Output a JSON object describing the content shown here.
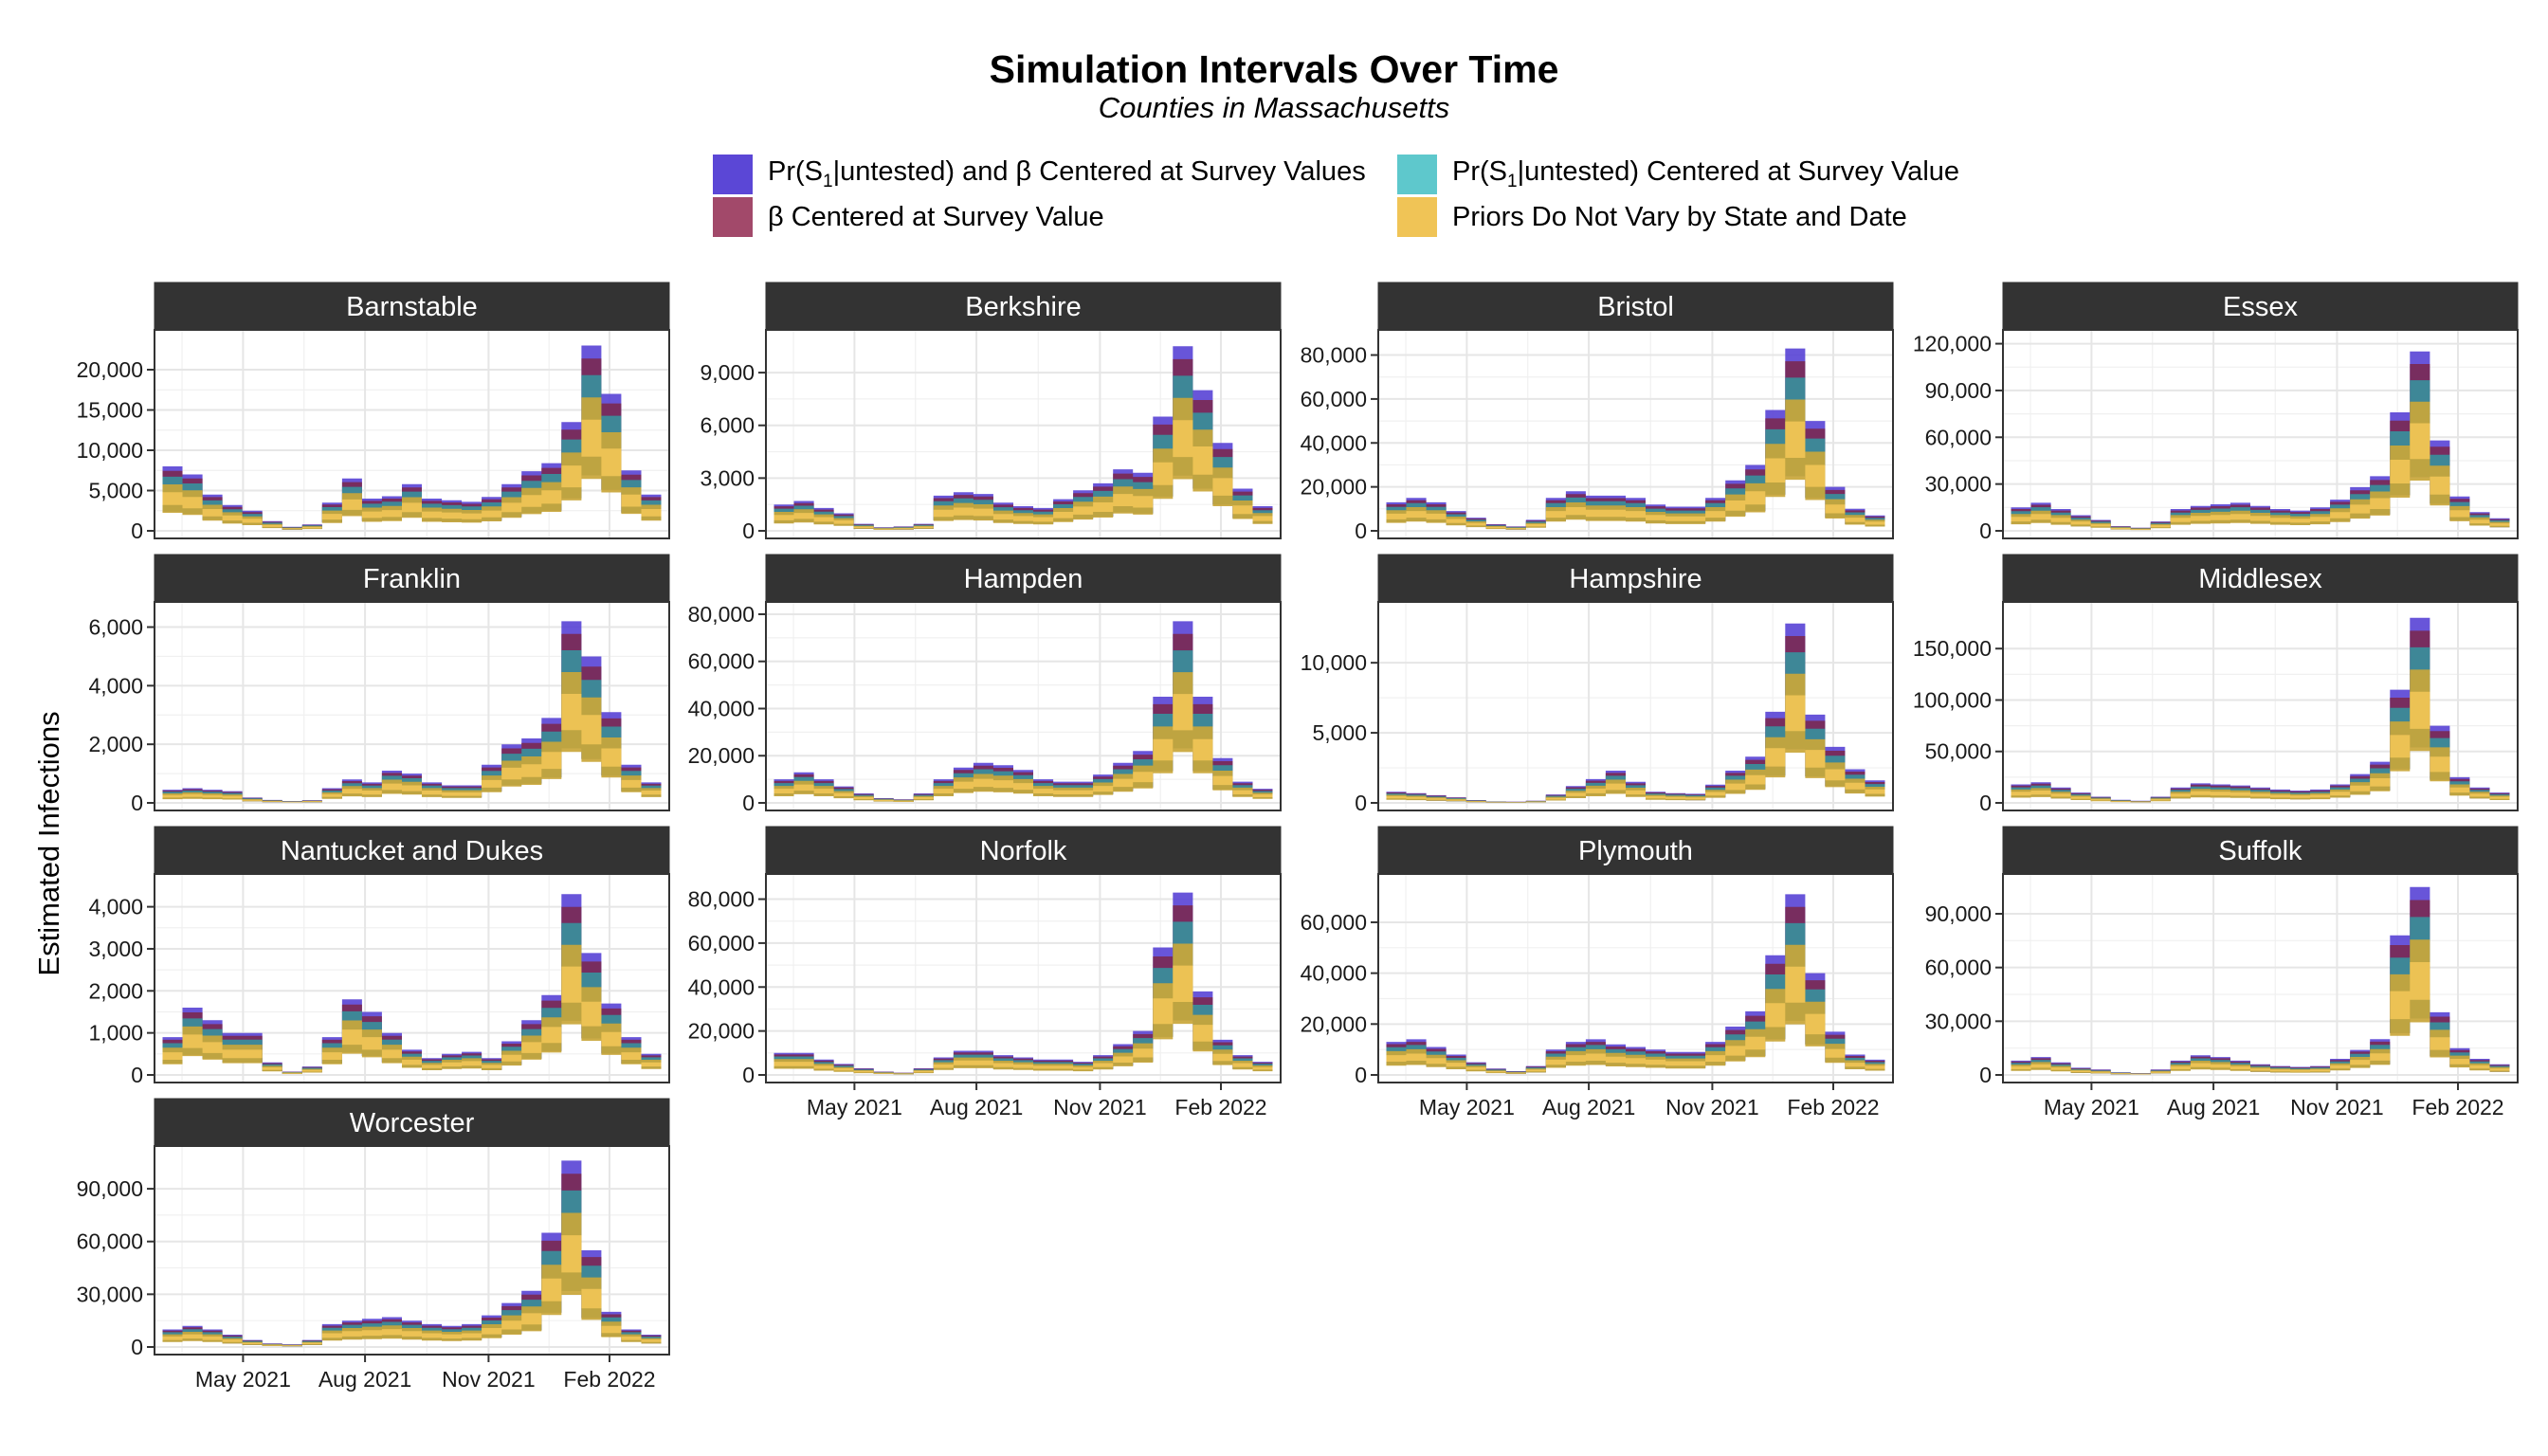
{
  "title": "Simulation Intervals Over Time",
  "subtitle": "Counties in Massachusetts",
  "ylabel": "Estimated Infections",
  "legend": [
    {
      "label_prefix": "Pr(S",
      "label_sub": "1",
      "label_suffix": "|untested) and β Centered at Survey Values",
      "color": "#5b47d6"
    },
    {
      "label_prefix": "Pr(S",
      "label_sub": "1",
      "label_suffix": "|untested) Centered at Survey Value",
      "color": "#5ec8cc"
    },
    {
      "label_prefix": "β Centered at Survey Value",
      "label_sub": "",
      "label_suffix": "",
      "color": "#a2496a"
    },
    {
      "label_prefix": "Priors Do Not Vary by State and Date",
      "label_sub": "",
      "label_suffix": "",
      "color": "#f0c456"
    }
  ],
  "chart_data": {
    "type": "area",
    "x_ticks": [
      "May 2021",
      "Aug 2021",
      "Nov 2021",
      "Feb 2022"
    ],
    "series_names": [
      "Pr(S1|untested) and β Centered at Survey Values",
      "Pr(S1|untested) Centered at Survey Value",
      "β Centered at Survey Value",
      "Priors Do Not Vary by State and Date"
    ],
    "x": [
      "2021-02",
      "2021-03a",
      "2021-03b",
      "2021-04a",
      "2021-04b",
      "2021-05a",
      "2021-05b",
      "2021-06a",
      "2021-06b",
      "2021-07a",
      "2021-07b",
      "2021-08a",
      "2021-08b",
      "2021-09a",
      "2021-09b",
      "2021-10a",
      "2021-10b",
      "2021-11a",
      "2021-11b",
      "2021-12a",
      "2021-12b",
      "2022-01a",
      "2022-01b",
      "2022-02a",
      "2022-02b"
    ],
    "panels": [
      {
        "name": "Barnstable",
        "y_ticks": [
          0,
          5000,
          10000,
          15000,
          20000
        ],
        "ylim": [
          0,
          24000
        ],
        "values": [
          8000,
          7000,
          4500,
          3200,
          2500,
          1200,
          500,
          800,
          3500,
          6500,
          4000,
          4300,
          5800,
          4000,
          3800,
          3600,
          4200,
          5800,
          7400,
          8400,
          13500,
          23000,
          17000,
          7500,
          4500
        ]
      },
      {
        "name": "Berkshire",
        "y_ticks": [
          0,
          3000,
          6000,
          9000
        ],
        "ylim": [
          0,
          11000
        ],
        "values": [
          1500,
          1700,
          1300,
          1000,
          400,
          200,
          250,
          400,
          2000,
          2200,
          2100,
          1600,
          1400,
          1300,
          1800,
          2300,
          2700,
          3500,
          3300,
          6500,
          10500,
          8000,
          5000,
          2400,
          1400
        ]
      },
      {
        "name": "Bristol",
        "y_ticks": [
          0,
          20000,
          40000,
          60000,
          80000
        ],
        "ylim": [
          0,
          88000
        ],
        "values": [
          13000,
          15000,
          13000,
          9000,
          6000,
          3000,
          2000,
          5000,
          15000,
          18000,
          16000,
          16000,
          15000,
          12000,
          11000,
          11000,
          15000,
          23000,
          30000,
          55000,
          83000,
          50000,
          20000,
          10000,
          7000
        ]
      },
      {
        "name": "Essex",
        "y_ticks": [
          0,
          30000,
          60000,
          90000,
          120000
        ],
        "ylim": [
          0,
          124000
        ],
        "values": [
          15000,
          18000,
          14000,
          10000,
          7000,
          3000,
          2000,
          6000,
          14000,
          16000,
          17000,
          18000,
          16000,
          14000,
          13000,
          15000,
          20000,
          28000,
          35000,
          76000,
          115000,
          58000,
          22000,
          12000,
          8000
        ]
      },
      {
        "name": "Franklin",
        "y_ticks": [
          0,
          2000,
          4000,
          6000
        ],
        "ylim": [
          0,
          6600
        ],
        "values": [
          450,
          500,
          450,
          400,
          180,
          100,
          60,
          90,
          500,
          800,
          700,
          1100,
          1000,
          700,
          600,
          600,
          1300,
          2000,
          2200,
          2900,
          6200,
          5000,
          3100,
          1300,
          700
        ]
      },
      {
        "name": "Hampden",
        "y_ticks": [
          0,
          20000,
          40000,
          60000,
          80000
        ],
        "ylim": [
          0,
          82000
        ],
        "values": [
          10000,
          13000,
          10000,
          7000,
          4000,
          2000,
          1500,
          4000,
          10000,
          15000,
          17000,
          16000,
          14000,
          10000,
          9000,
          9000,
          12000,
          17000,
          22000,
          45000,
          77000,
          45000,
          19000,
          9000,
          6000
        ]
      },
      {
        "name": "Hampshire",
        "y_ticks": [
          0,
          5000,
          10000
        ],
        "ylim": [
          0,
          13800
        ],
        "values": [
          800,
          700,
          550,
          400,
          200,
          100,
          80,
          150,
          600,
          1200,
          1700,
          2300,
          1500,
          800,
          700,
          650,
          1300,
          2300,
          3300,
          6500,
          12800,
          6300,
          4000,
          2400,
          1600
        ]
      },
      {
        "name": "Middlesex",
        "y_ticks": [
          0,
          50000,
          100000,
          150000
        ],
        "ylim": [
          0,
          188000
        ],
        "values": [
          18000,
          20000,
          15000,
          10000,
          6000,
          3000,
          2000,
          6000,
          15000,
          19000,
          18000,
          17000,
          15000,
          13000,
          12000,
          13000,
          18000,
          28000,
          40000,
          110000,
          180000,
          75000,
          25000,
          15000,
          10000
        ]
      },
      {
        "name": "Nantucket and Dukes",
        "y_ticks": [
          0,
          1000,
          2000,
          3000,
          4000
        ],
        "ylim": [
          0,
          4600
        ],
        "values": [
          900,
          1600,
          1300,
          1000,
          1000,
          300,
          80,
          200,
          900,
          1800,
          1500,
          1000,
          600,
          400,
          500,
          550,
          400,
          800,
          1300,
          1900,
          4300,
          2900,
          1700,
          900,
          500
        ]
      },
      {
        "name": "Norfolk",
        "y_ticks": [
          0,
          20000,
          40000,
          60000,
          80000
        ],
        "ylim": [
          0,
          88000
        ],
        "values": [
          10000,
          10000,
          7000,
          5000,
          3000,
          1500,
          1000,
          3000,
          8000,
          11000,
          11000,
          9000,
          8000,
          7000,
          7000,
          6000,
          9000,
          14000,
          20000,
          58000,
          83000,
          38000,
          16000,
          9000,
          6000
        ]
      },
      {
        "name": "Plymouth",
        "y_ticks": [
          0,
          20000,
          40000,
          60000
        ],
        "ylim": [
          0,
          76000
        ],
        "values": [
          13000,
          14000,
          11000,
          8000,
          5000,
          2500,
          1500,
          3500,
          10000,
          13000,
          14000,
          12000,
          11000,
          10000,
          9000,
          9000,
          13000,
          19000,
          25000,
          47000,
          71000,
          40000,
          17000,
          8000,
          6000
        ]
      },
      {
        "name": "Suffolk",
        "y_ticks": [
          0,
          30000,
          60000,
          90000
        ],
        "ylim": [
          0,
          108000
        ],
        "values": [
          8000,
          10000,
          7000,
          4000,
          3000,
          1500,
          1000,
          3000,
          8000,
          11000,
          10000,
          8000,
          6000,
          5000,
          4500,
          5000,
          9000,
          14000,
          20000,
          78000,
          105000,
          35000,
          15000,
          9000,
          6000
        ]
      },
      {
        "name": "Worcester",
        "y_ticks": [
          0,
          30000,
          60000,
          90000
        ],
        "ylim": [
          0,
          110000
        ],
        "values": [
          10000,
          12000,
          10000,
          7000,
          4000,
          2000,
          1500,
          4000,
          13000,
          15000,
          16000,
          17000,
          15000,
          13000,
          12000,
          13000,
          18000,
          25000,
          32000,
          65000,
          106000,
          55000,
          20000,
          10000,
          7000
        ]
      }
    ]
  }
}
